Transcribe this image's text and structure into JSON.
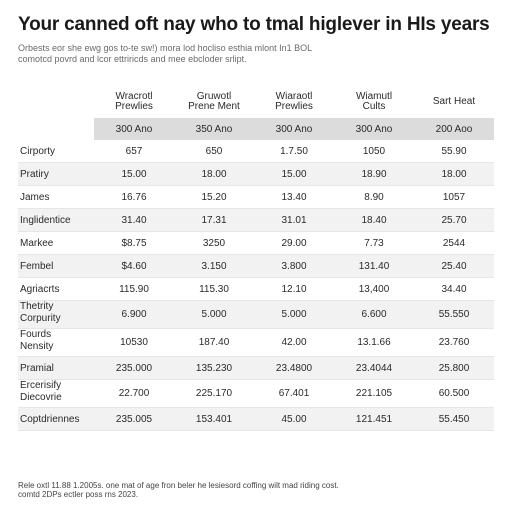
{
  "title": "Your canned oft nay who to tmal higlever in HIs years",
  "subtitle": [
    "Orbests eor she ewg gos to-te sw!) mora lod hocliso esthia mlont In1 BOL",
    "comotcd povrd and lcor ettriricds and mee ebcloder srlipt."
  ],
  "columns": [
    {
      "line1": "Wracrotl",
      "line2": "Prewlies"
    },
    {
      "line1": "Gruwotl",
      "line2": "Prene Ment"
    },
    {
      "line1": "Wiaraotl",
      "line2": "Prewlies"
    },
    {
      "line1": "Wiamutl",
      "line2": "Cults"
    },
    {
      "line1": "Sart Heat",
      "line2": ""
    }
  ],
  "rates": [
    "300 Ano",
    "350 Ano",
    "300 Ano",
    "300 Ano",
    "200 Aoo"
  ],
  "rows": [
    {
      "label": "Cirporty",
      "pre": "",
      "values": [
        "657",
        "650",
        "1.7.50",
        "1050",
        "55.90"
      ]
    },
    {
      "label": "Pratiry",
      "pre": "",
      "values": [
        "15.00",
        "18.00",
        "15.00",
        "18.90",
        "18.00"
      ]
    },
    {
      "label": "James",
      "pre": "",
      "values": [
        "16.76",
        "15.20",
        "13.40",
        "8.90",
        "1057"
      ]
    },
    {
      "label": "Inglidentice",
      "pre": "",
      "values": [
        "31.40",
        "17.31",
        "31.01",
        "18.40",
        "25.70"
      ]
    },
    {
      "label": "Markee",
      "pre": "",
      "values": [
        "$8.75",
        "3250",
        "29.00",
        "7.73",
        "2544"
      ]
    },
    {
      "label": "Fembel",
      "pre": "",
      "values": [
        "$4.60",
        "3.150",
        "3.800",
        "131.40",
        "25.40"
      ]
    },
    {
      "label": "Agriacrts",
      "pre": "",
      "values": [
        "115.90",
        "115.30",
        "12.10",
        "13,400",
        "34.40"
      ]
    },
    {
      "label": "Corpurity",
      "pre": "Thetrity",
      "values": [
        "6.900",
        "5.000",
        "5.000",
        "6.600",
        "55.550"
      ]
    },
    {
      "label": "Nensity",
      "pre": "Fourds",
      "values": [
        "10530",
        "187.40",
        "42.00",
        "13.1.66",
        "23.760"
      ]
    },
    {
      "label": "Pramial",
      "pre": "",
      "values": [
        "235.000",
        "135.230",
        "23.4800",
        "23.4044",
        "25.800"
      ]
    },
    {
      "label": "Diecovrie",
      "pre": "Ercerisify",
      "values": [
        "22.700",
        "225.170",
        "67.401",
        "221.105",
        "60.500"
      ]
    },
    {
      "label": "Coptdriennes",
      "pre": "",
      "values": [
        "235.005",
        "153.401",
        "45.00",
        "121.451",
        "55.450"
      ]
    }
  ],
  "footnote": [
    "Rele oxtl 11.88 1.2005s. one mat of age fron beler he lesiesord coffing wilt mad riding cost.",
    "comtd 2DPs ectler poss rns 2023."
  ]
}
